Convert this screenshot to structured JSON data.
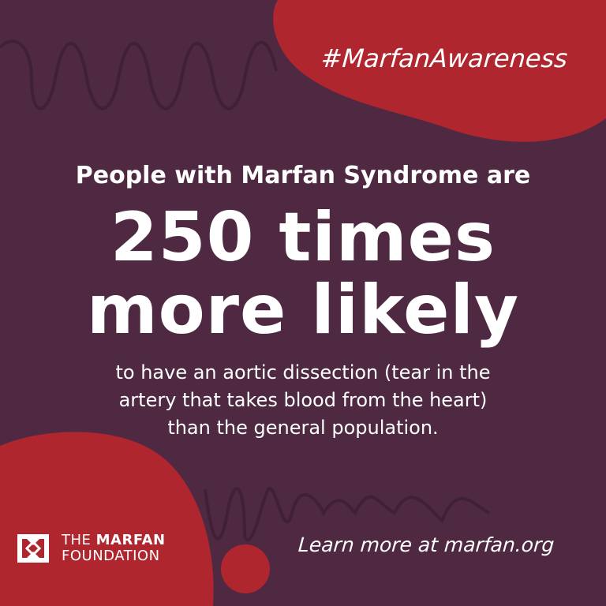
{
  "hashtag": "#MarfanAwareness",
  "headline": {
    "lead": "People with Marfan Syndrome are",
    "line1": "250 times",
    "line2": "more likely"
  },
  "body": {
    "line1": "to have an aortic dissection (tear in the",
    "line2": "artery that takes blood from the heart)",
    "line3": "than the general population."
  },
  "logo": {
    "the": "THE",
    "name": "MARFAN",
    "foundation": "FOUNDATION"
  },
  "cta": "Learn more at marfan.org",
  "colors": {
    "background": "#4f2942",
    "accent": "#b0262f",
    "text": "#ffffff"
  }
}
